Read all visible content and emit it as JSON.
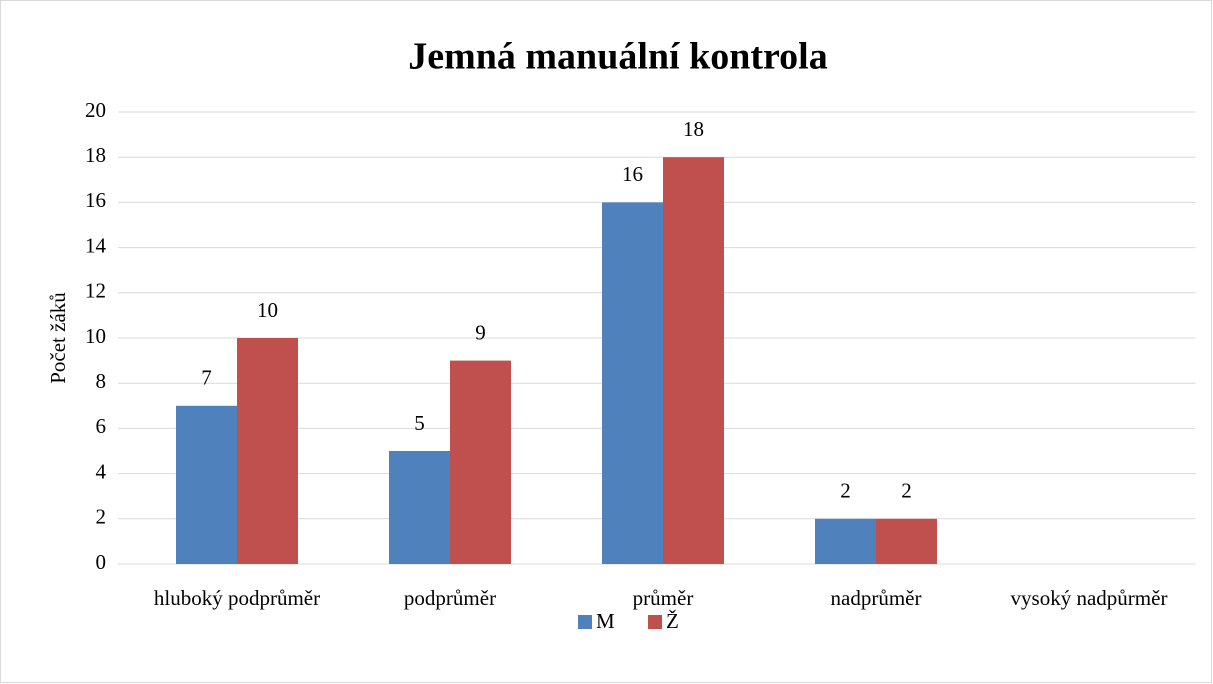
{
  "chart_data": {
    "type": "bar",
    "title": "Jemná manuální kontrola",
    "y_label": "Počet žáků",
    "categories": [
      "hluboký podprůměr",
      "podprůměr",
      "průměr",
      "nadprůměr",
      "vysoký nadpůrměr"
    ],
    "series": [
      {
        "name": "M",
        "color": "#4f81bd",
        "values": [
          7,
          5,
          16,
          2,
          null
        ]
      },
      {
        "name": "Ž",
        "color": "#c0504d",
        "values": [
          10,
          9,
          18,
          2,
          null
        ]
      }
    ],
    "ylim": [
      0,
      20
    ],
    "yticks": [
      0,
      2,
      4,
      6,
      8,
      10,
      12,
      14,
      16,
      18,
      20
    ],
    "grid": true,
    "legend": "bottom"
  }
}
